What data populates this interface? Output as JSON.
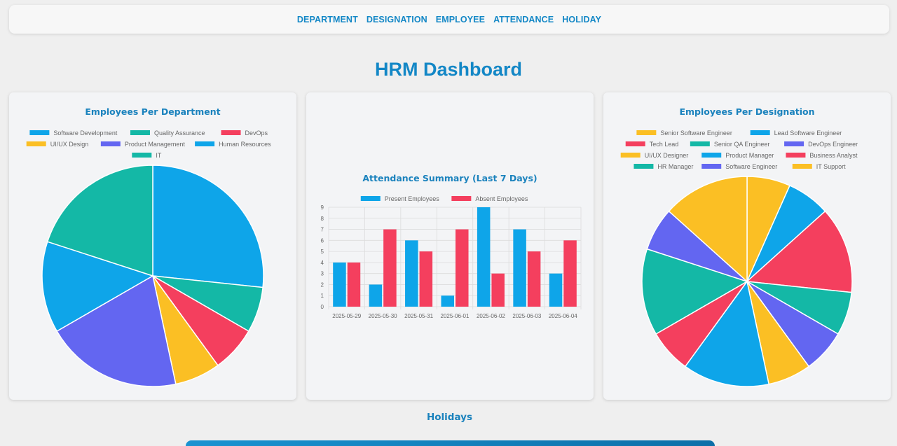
{
  "nav": {
    "items": [
      "DEPARTMENT",
      "DESIGNATION",
      "EMPLOYEE",
      "ATTENDANCE",
      "HOLIDAY"
    ]
  },
  "page_title": "HRM Dashboard",
  "holidays": {
    "title": "Holidays"
  },
  "colors": {
    "accent": "#1387c6",
    "blue": "#0ea5e9",
    "teal": "#14b8a6",
    "red": "#f43f5e",
    "yellow": "#fbbf24",
    "purple": "#6366f1"
  },
  "chart_data": [
    {
      "type": "pie",
      "title": "Employees Per Department",
      "labels": [
        "Software Development",
        "Quality Assurance",
        "DevOps",
        "UI/UX Design",
        "Product Management",
        "Human Resources",
        "IT"
      ],
      "colors": [
        "#0ea5e9",
        "#14b8a6",
        "#f43f5e",
        "#fbbf24",
        "#6366f1",
        "#0ea5e9",
        "#14b8a6"
      ],
      "values": [
        4,
        1,
        1,
        1,
        3,
        2,
        3
      ],
      "legend": "top"
    },
    {
      "type": "bar",
      "title": "Attendance Summary (Last 7 Days)",
      "categories": [
        "2025-05-29",
        "2025-05-30",
        "2025-05-31",
        "2025-06-01",
        "2025-06-02",
        "2025-06-03",
        "2025-06-04"
      ],
      "series": [
        {
          "name": "Present Employees",
          "color": "#0ea5e9",
          "values": [
            4,
            2,
            6,
            1,
            9,
            7,
            3
          ]
        },
        {
          "name": "Absent Employees",
          "color": "#f43f5e",
          "values": [
            4,
            7,
            5,
            7,
            3,
            5,
            6
          ]
        }
      ],
      "ylim": [
        0,
        9
      ],
      "yticks": [
        0,
        1,
        2,
        3,
        4,
        5,
        6,
        7,
        8,
        9
      ],
      "grid": true,
      "legend": "top"
    },
    {
      "type": "pie",
      "title": "Employees Per Designation",
      "labels": [
        "Senior Software Engineer",
        "Lead Software Engineer",
        "Tech Lead",
        "Senior QA Engineer",
        "DevOps Engineer",
        "UI/UX Designer",
        "Product Manager",
        "Business Analyst",
        "HR Manager",
        "Software Engineer",
        "IT Support"
      ],
      "colors": [
        "#fbbf24",
        "#0ea5e9",
        "#f43f5e",
        "#14b8a6",
        "#6366f1",
        "#fbbf24",
        "#0ea5e9",
        "#f43f5e",
        "#14b8a6",
        "#6366f1",
        "#fbbf24"
      ],
      "values": [
        1,
        1,
        2,
        1,
        1,
        1,
        2,
        1,
        2,
        1,
        2
      ],
      "legend": "top"
    }
  ]
}
